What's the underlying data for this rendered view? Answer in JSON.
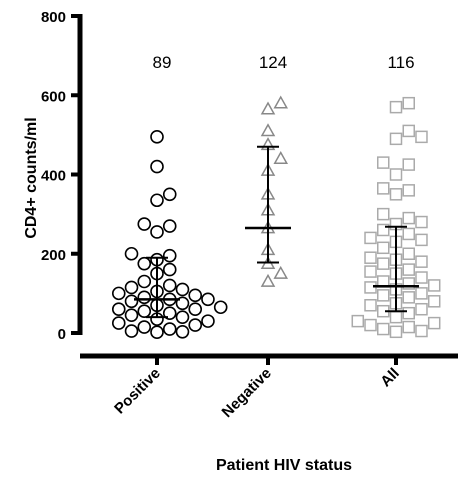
{
  "chart_data": {
    "type": "scatter",
    "subtype": "dot-plot-with-median-iqr",
    "xlabel": "Patient HIV status",
    "ylabel": "CD4+ counts/ml",
    "ylim": [
      0,
      800
    ],
    "yticks": [
      0,
      200,
      400,
      600,
      800
    ],
    "grid": false,
    "categories": [
      "Positive",
      "Negative",
      "All"
    ],
    "counts": [
      "89",
      "124",
      "116"
    ],
    "series": [
      {
        "category": "Positive",
        "marker": "circle",
        "color": "#000000",
        "median": 85,
        "q1": 40,
        "q3": 190,
        "values": [
          495,
          420,
          350,
          335,
          275,
          270,
          255,
          200,
          195,
          185,
          175,
          160,
          150,
          130,
          120,
          115,
          110,
          105,
          100,
          95,
          90,
          85,
          80,
          75,
          70,
          65,
          60,
          55,
          50,
          45,
          40,
          35,
          30,
          25,
          20,
          15,
          10,
          5,
          3,
          2,
          85,
          60
        ]
      },
      {
        "category": "Negative",
        "marker": "triangle",
        "color": "#888888",
        "median": 265,
        "q1": 178,
        "q3": 470,
        "values": [
          580,
          565,
          510,
          475,
          440,
          410,
          350,
          310,
          265,
          210,
          175,
          150,
          130
        ]
      },
      {
        "category": "All",
        "marker": "square",
        "color": "#aaaaaa",
        "median": 118,
        "q1": 55,
        "q3": 268,
        "values": [
          580,
          570,
          510,
          495,
          490,
          430,
          425,
          400,
          365,
          360,
          350,
          300,
          290,
          280,
          275,
          260,
          250,
          240,
          235,
          230,
          215,
          200,
          190,
          185,
          180,
          175,
          160,
          155,
          150,
          140,
          130,
          125,
          120,
          115,
          110,
          100,
          95,
          90,
          80,
          75,
          70,
          60,
          55,
          50,
          40,
          30,
          25,
          20,
          15,
          10,
          5,
          3
        ]
      }
    ]
  }
}
